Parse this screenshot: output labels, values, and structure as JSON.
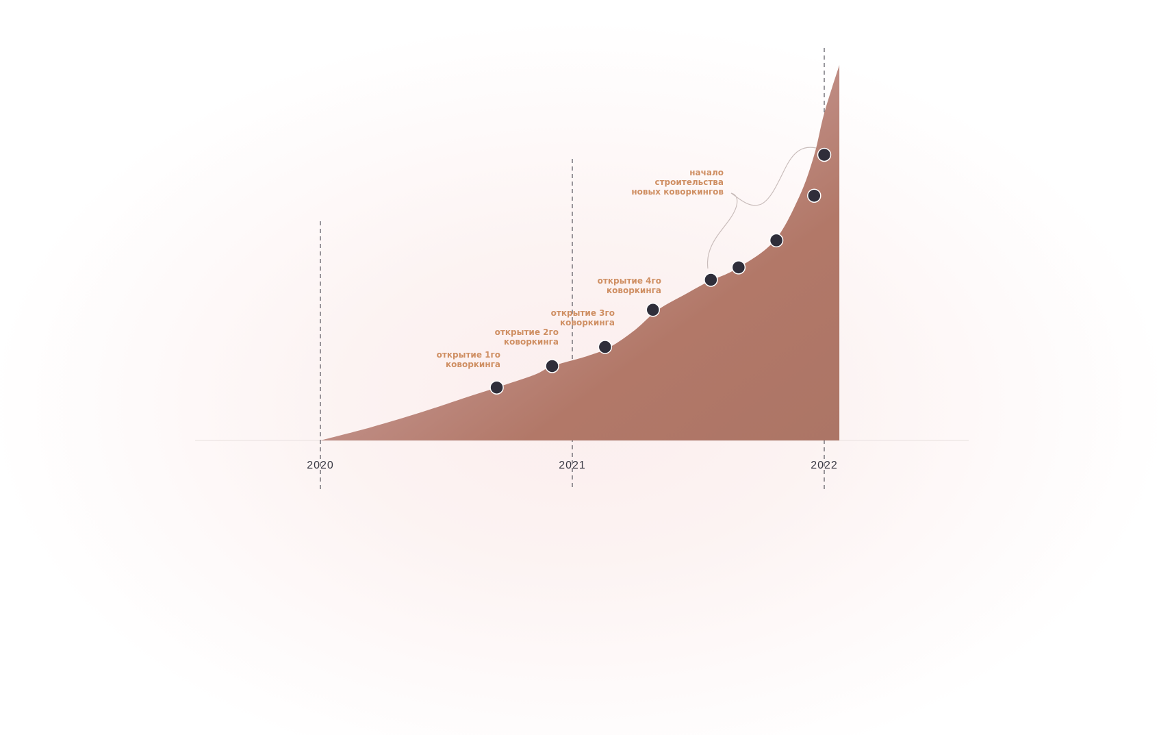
{
  "chart_data": {
    "type": "area",
    "x_axis": {
      "ticks": [
        "2020",
        "2021",
        "2022"
      ],
      "range": [
        2020,
        2022.06
      ]
    },
    "y_axis": {
      "shown": false,
      "range": [
        0,
        100
      ]
    },
    "grid": "dashed vertical lines at year ticks",
    "series": [
      {
        "name": "",
        "color": "#b27868",
        "area_curve": [
          [
            2020.0,
            0
          ],
          [
            2020.2,
            3.5
          ],
          [
            2020.4,
            7.5
          ],
          [
            2020.58,
            11.5
          ],
          [
            2020.7,
            14.1
          ],
          [
            2020.85,
            17.5
          ],
          [
            2020.92,
            19.8
          ],
          [
            2021.06,
            22.5
          ],
          [
            2021.15,
            24.9
          ],
          [
            2021.25,
            29.5
          ],
          [
            2021.34,
            34.8
          ],
          [
            2021.45,
            39
          ],
          [
            2021.54,
            42.3
          ],
          [
            2021.65,
            45.7
          ],
          [
            2021.8,
            53
          ],
          [
            2021.9,
            64.8
          ],
          [
            2021.96,
            76
          ],
          [
            2022.0,
            87.2
          ],
          [
            2022.06,
            100
          ],
          [
            2022.06,
            0
          ]
        ]
      }
    ],
    "points": [
      {
        "x": 2020.7,
        "y": 14.1
      },
      {
        "x": 2020.92,
        "y": 19.8
      },
      {
        "x": 2021.13,
        "y": 24.9
      },
      {
        "x": 2021.32,
        "y": 34.8
      },
      {
        "x": 2021.55,
        "y": 42.8
      },
      {
        "x": 2021.66,
        "y": 46.1
      },
      {
        "x": 2021.81,
        "y": 53.3
      },
      {
        "x": 2021.96,
        "y": 65.2
      },
      {
        "x": 2022.0,
        "y": 76.1
      }
    ],
    "annotations": [
      {
        "lines": [
          "открытие 1го",
          "коворкинга"
        ],
        "point_index": 0
      },
      {
        "lines": [
          "открытие 2го",
          "коворкинга"
        ],
        "point_index": 1
      },
      {
        "lines": [
          "открытие 3го",
          "коворкинга"
        ],
        "point_index": 2
      },
      {
        "lines": [
          "открытие 4го",
          "коворкинга"
        ],
        "point_index": 3
      },
      {
        "lines": [
          "начало",
          "строительства",
          "новых коворкингов"
        ],
        "point_range": [
          4,
          8
        ]
      }
    ],
    "point_color": "#2f2e3a",
    "annotation_color": "#cf8f63"
  }
}
